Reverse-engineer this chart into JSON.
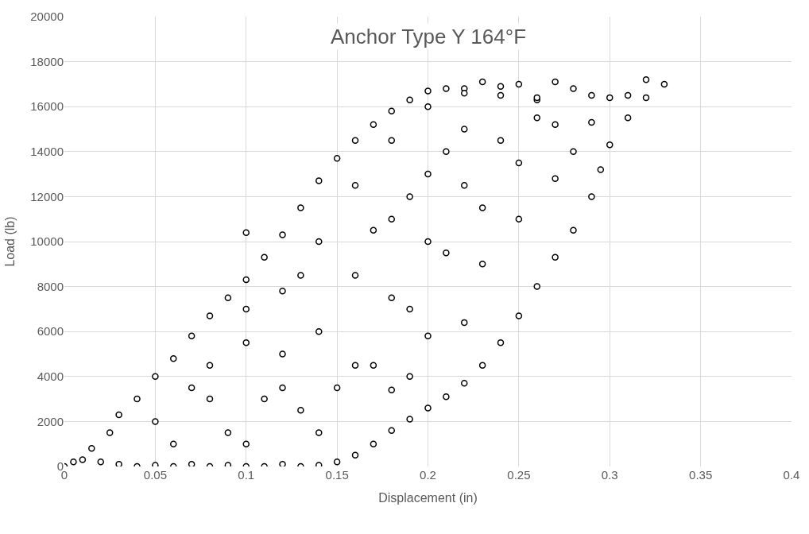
{
  "chart_data": {
    "type": "scatter",
    "title": "Anchor Type Y 164°F",
    "xlabel": "Displacement (in)",
    "ylabel": "Load (lb)",
    "xlim": [
      0,
      0.4
    ],
    "xticks": [
      0,
      0.05,
      0.1,
      0.15,
      0.2,
      0.25,
      0.3,
      0.35,
      0.4
    ],
    "ylim": [
      0,
      20000
    ],
    "yticks": [
      0,
      2000,
      4000,
      6000,
      8000,
      10000,
      12000,
      14000,
      16000,
      18000,
      20000
    ],
    "grid": true,
    "marker": "circle",
    "series": [
      {
        "color": "#000000",
        "x": [
          0,
          0.005,
          0.01,
          0.02,
          0.03,
          0.04,
          0.05,
          0.06,
          0.07,
          0.08,
          0.09,
          0.1,
          0.11,
          0.12,
          0.13,
          0.14,
          0.15,
          0.015,
          0.025,
          0.03,
          0.04,
          0.05,
          0.06,
          0.07,
          0.08,
          0.09,
          0.1,
          0.11,
          0.12,
          0.13,
          0.14,
          0.15,
          0.16,
          0.17,
          0.18,
          0.19,
          0.2,
          0.21,
          0.1,
          0.06,
          0.08,
          0.1,
          0.12,
          0.14,
          0.16,
          0.18,
          0.2,
          0.22,
          0.23,
          0.1,
          0.12,
          0.14,
          0.16,
          0.18,
          0.2,
          0.22,
          0.24,
          0.25,
          0.14,
          0.16,
          0.18,
          0.2,
          0.22,
          0.24,
          0.26,
          0.27,
          0.17,
          0.19,
          0.21,
          0.23,
          0.25,
          0.27,
          0.29,
          0.22,
          0.24,
          0.26,
          0.28,
          0.3,
          0.31,
          0.32,
          0.33,
          0.32,
          0.31,
          0.3,
          0.295,
          0.29,
          0.28,
          0.27,
          0.26,
          0.25,
          0.24,
          0.23,
          0.22,
          0.21,
          0.2,
          0.19,
          0.18,
          0.17,
          0.16,
          0.05,
          0.07,
          0.09,
          0.11,
          0.13,
          0.12,
          0.1,
          0.08,
          0.15,
          0.19,
          0.2,
          0.22,
          0.13,
          0.17,
          0.19,
          0.21,
          0.23,
          0.25,
          0.27,
          0.28,
          0.26,
          0.29,
          0.18
        ],
        "values": [
          0,
          200,
          300,
          200,
          100,
          0,
          50,
          0,
          100,
          0,
          50,
          0,
          0,
          100,
          0,
          50,
          200,
          800,
          1500,
          2300,
          3000,
          4000,
          4800,
          5800,
          6700,
          7500,
          8300,
          9300,
          10300,
          11500,
          12700,
          13700,
          14500,
          15200,
          15800,
          16300,
          16700,
          16800,
          10400,
          1000,
          3000,
          5500,
          7800,
          10000,
          12500,
          14500,
          16000,
          16800,
          17100,
          1000,
          3500,
          6000,
          8500,
          11000,
          13000,
          15000,
          16500,
          17000,
          1500,
          4500,
          7500,
          10000,
          12500,
          14500,
          16300,
          17100,
          4500,
          7000,
          9500,
          11500,
          13500,
          15200,
          16500,
          16600,
          16900,
          16400,
          16800,
          16400,
          16500,
          17200,
          17000,
          16400,
          15500,
          14300,
          13200,
          12000,
          10500,
          9300,
          8000,
          6700,
          5500,
          4500,
          3700,
          3100,
          2600,
          2100,
          1600,
          1000,
          500,
          2000,
          3500,
          1500,
          3000,
          2500,
          5000,
          7000,
          4500,
          3500,
          4000,
          5800,
          6400,
          8500,
          10500,
          12000,
          14000,
          9000,
          11000,
          12800,
          14000,
          15500,
          15300,
          3400
        ]
      }
    ]
  }
}
